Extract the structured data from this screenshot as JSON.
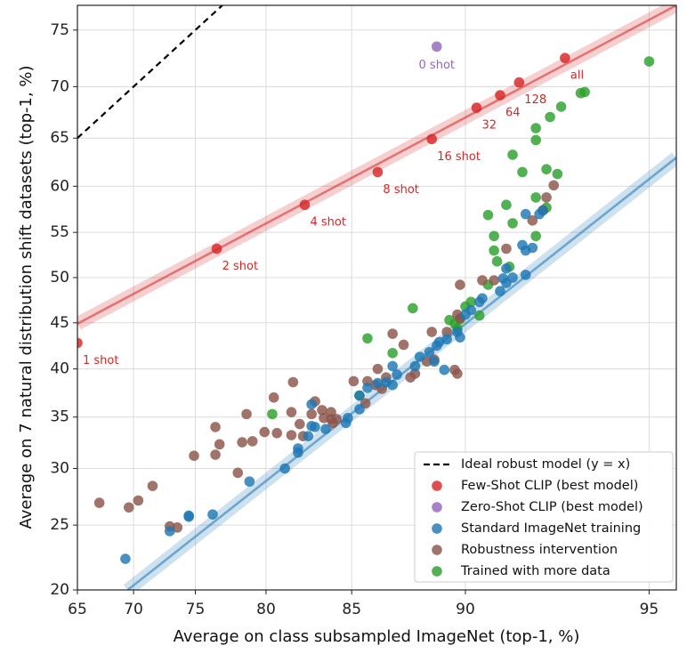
{
  "chart_data": {
    "type": "scatter",
    "xscale": "logit",
    "yscale": "logit",
    "xlabel": "Average on class subsampled ImageNet (top-1, %)",
    "ylabel": "Average on 7 natural distribution shift datasets (top-1, %)",
    "xlim": [
      65,
      95.5
    ],
    "ylim": [
      20,
      77
    ],
    "xticks": [
      65,
      70,
      75,
      80,
      85,
      90,
      95
    ],
    "yticks": [
      20,
      25,
      30,
      35,
      40,
      45,
      50,
      55,
      60,
      65,
      70,
      75
    ],
    "grid": true,
    "legend": "lower right",
    "reference_line": {
      "name": "Ideal robust model (y = x)",
      "style": "dashed",
      "color": "#000000"
    },
    "series": [
      {
        "name": "Few-Shot CLIP (best model)",
        "color": "#d62728",
        "x": [
          65.0,
          76.6,
          82.4,
          86.3,
          88.7,
          90.4,
          91.2,
          91.8,
          93.1
        ],
        "y": [
          42.8,
          53.2,
          58.0,
          61.5,
          64.9,
          68.0,
          69.2,
          70.4,
          72.6
        ],
        "labels": [
          "1 shot",
          "2 shot",
          "4 shot",
          "8 shot",
          "16 shot",
          "32",
          "64",
          "128",
          "all"
        ],
        "fit": {
          "x": [
            65,
            95.5
          ],
          "y": [
            44.9,
            77
          ]
        }
      },
      {
        "name": "Zero-Shot CLIP (best model)",
        "color": "#9467bd",
        "x": [
          88.9
        ],
        "y": [
          73.6
        ],
        "labels": [
          "0 shot"
        ]
      },
      {
        "name": "Standard ImageNet training",
        "color": "#1f77b4",
        "x": [
          69.3,
          73.0,
          74.5,
          74.5,
          76.3,
          78.9,
          81.2,
          82.0,
          82.0,
          82.6,
          82.8,
          83.0,
          83.6,
          82.8,
          84.8,
          84.7,
          85.4,
          85.4,
          85.8,
          86.3,
          86.7,
          87.0,
          87.2,
          87.0,
          88.0,
          88.2,
          88.6,
          88.8,
          88.9,
          89.0,
          89.2,
          89.3,
          89.7,
          89.8,
          90.0,
          90.2,
          90.6,
          90.5,
          91.2,
          91.3,
          91.4,
          91.6,
          92.0,
          91.4,
          91.9,
          92.0,
          92.2,
          92.4,
          92.5,
          92.0
        ],
        "y": [
          22.3,
          24.5,
          25.7,
          25.8,
          25.9,
          28.8,
          30.0,
          31.9,
          31.5,
          33.1,
          34.1,
          34.0,
          33.8,
          36.3,
          34.9,
          34.4,
          35.8,
          37.2,
          38.0,
          38.5,
          38.6,
          38.3,
          39.4,
          40.3,
          40.3,
          41.3,
          41.8,
          40.8,
          42.5,
          42.9,
          39.9,
          43.2,
          44.0,
          43.4,
          45.9,
          46.4,
          47.7,
          47.3,
          48.5,
          49.9,
          49.4,
          50.0,
          50.3,
          51.0,
          53.6,
          53.0,
          53.3,
          57.0,
          57.4,
          57.0
        ],
        "fit": {
          "x": [
            69.5,
            95.5
          ],
          "y": [
            20,
            63
          ]
        }
      },
      {
        "name": "Robustness intervention",
        "color": "#8c564b",
        "x": [
          67.0,
          69.6,
          70.4,
          71.6,
          73.0,
          73.6,
          74.9,
          76.5,
          76.8,
          76.5,
          78.1,
          78.4,
          78.7,
          79.1,
          79.9,
          80.5,
          80.7,
          81.7,
          81.6,
          81.6,
          82.1,
          82.3,
          82.8,
          83.0,
          83.4,
          83.5,
          83.9,
          83.9,
          84.0,
          84.2,
          85.1,
          85.7,
          85.8,
          86.2,
          86.3,
          86.5,
          86.7,
          87.0,
          87.5,
          87.8,
          88.0,
          88.5,
          88.8,
          88.7,
          89.3,
          89.8,
          89.7,
          89.7,
          89.6,
          89.8,
          90.6,
          91.0,
          91.4,
          92.2,
          92.5,
          92.6,
          92.8
        ],
        "y": [
          26.9,
          26.5,
          27.1,
          28.4,
          24.9,
          24.8,
          31.2,
          34.0,
          32.3,
          31.3,
          29.6,
          32.5,
          35.3,
          32.6,
          33.5,
          37.0,
          33.4,
          38.6,
          35.5,
          33.2,
          34.3,
          33.1,
          35.3,
          36.6,
          35.7,
          34.9,
          35.5,
          34.8,
          34.4,
          34.8,
          38.7,
          36.4,
          38.7,
          38.3,
          40.0,
          37.9,
          39.1,
          43.8,
          42.6,
          39.1,
          39.5,
          40.8,
          41.0,
          44.0,
          44.0,
          45.5,
          45.9,
          39.5,
          39.9,
          49.2,
          49.7,
          49.7,
          53.2,
          56.3,
          57.4,
          58.8,
          60.1
        ]
      },
      {
        "name": "Trained with more data",
        "color": "#2ca02c",
        "x": [
          95.0,
          93.6,
          93.5,
          93.0,
          92.7,
          92.3,
          92.3,
          91.6,
          91.9,
          92.6,
          92.9,
          92.3,
          92.6,
          91.4,
          90.8,
          91.6,
          91.0,
          91.0,
          92.3,
          91.1,
          91.5,
          90.8,
          90.0,
          90.5,
          90.2,
          89.6,
          89.7,
          89.4,
          89.8,
          87.9,
          85.8,
          87.0,
          85.4,
          80.4
        ],
        "y": [
          72.3,
          69.5,
          69.4,
          68.1,
          67.1,
          66.0,
          64.8,
          63.3,
          61.5,
          61.8,
          61.3,
          58.8,
          57.7,
          58.0,
          56.9,
          56.0,
          54.6,
          53.0,
          54.6,
          51.8,
          51.2,
          49.2,
          46.8,
          45.8,
          47.3,
          44.9,
          44.4,
          45.3,
          45.4,
          46.6,
          43.3,
          41.7,
          37.2,
          35.3
        ]
      }
    ]
  }
}
